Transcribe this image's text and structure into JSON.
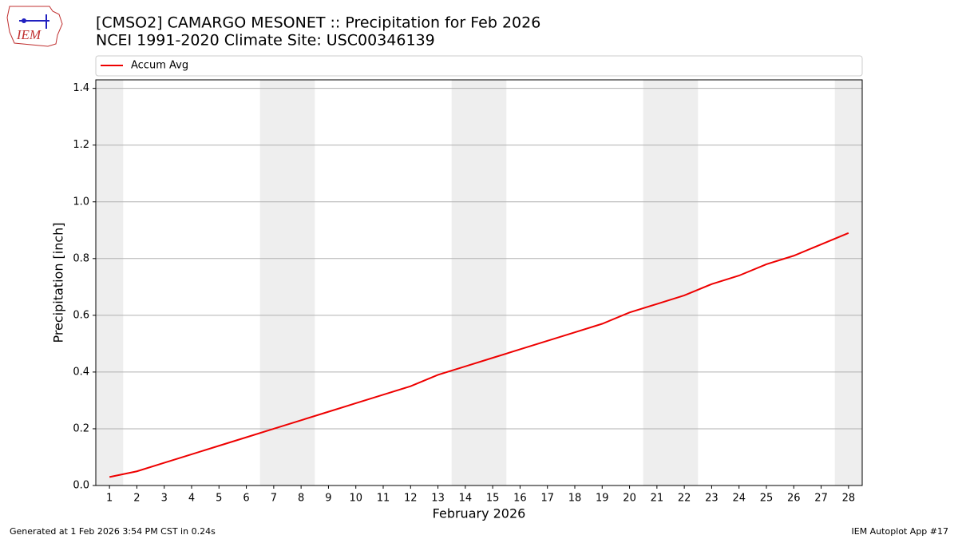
{
  "chart_data": {
    "type": "line",
    "title": "[CMSO2] CAMARGO MESONET :: Precipitation for Feb 2026",
    "subtitle": "NCEI 1991-2020 Climate Site: USC00346139",
    "xlabel": "February 2026",
    "ylabel": "Precipitation [inch]",
    "x": [
      1,
      2,
      3,
      4,
      5,
      6,
      7,
      8,
      9,
      10,
      11,
      12,
      13,
      14,
      15,
      16,
      17,
      18,
      19,
      20,
      21,
      22,
      23,
      24,
      25,
      26,
      27,
      28
    ],
    "series": [
      {
        "name": "Accum Avg",
        "color": "#ee0000",
        "values": [
          0.03,
          0.05,
          0.08,
          0.11,
          0.14,
          0.17,
          0.2,
          0.23,
          0.26,
          0.29,
          0.32,
          0.35,
          0.39,
          0.42,
          0.45,
          0.48,
          0.51,
          0.54,
          0.57,
          0.61,
          0.64,
          0.67,
          0.71,
          0.74,
          0.78,
          0.81,
          0.85,
          0.89
        ]
      }
    ],
    "xlim": [
      0.5,
      28.5
    ],
    "ylim": [
      0,
      1.43
    ],
    "xticks": [
      1,
      2,
      3,
      4,
      5,
      6,
      7,
      8,
      9,
      10,
      11,
      12,
      13,
      14,
      15,
      16,
      17,
      18,
      19,
      20,
      21,
      22,
      23,
      24,
      25,
      26,
      27,
      28
    ],
    "yticks": [
      {
        "value": 0,
        "label": "0.0"
      },
      0.2,
      0.4,
      0.6,
      0.8,
      {
        "value": 1,
        "label": "1.0"
      },
      1.2,
      1.4
    ],
    "grid": true,
    "shaded_spans": [
      [
        0.5,
        1.5
      ],
      [
        6.5,
        8.5
      ],
      [
        13.5,
        15.5
      ],
      [
        20.5,
        22.5
      ],
      [
        27.5,
        28.5
      ]
    ],
    "shade_color": "#eeeeee",
    "legend": "top"
  },
  "logo_text": "IEM",
  "footer": {
    "left": "Generated at 1 Feb 2026 3:54 PM CST in 0.24s",
    "right": "IEM Autoplot App #17"
  }
}
